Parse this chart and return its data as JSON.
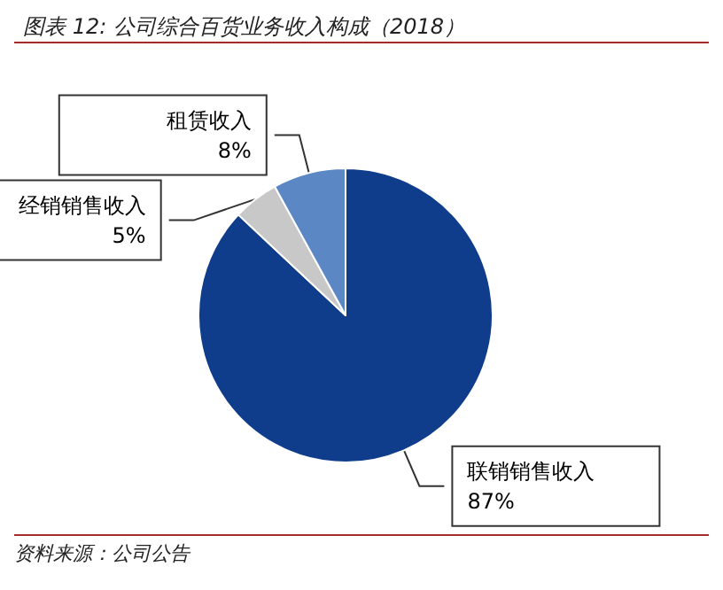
{
  "chart_data": {
    "type": "pie",
    "title": "图表 12: 公司综合百货业务收入构成（2018）",
    "categories": [
      "联销销售收入",
      "经销销售收入",
      "租赁收入"
    ],
    "values": [
      87,
      5,
      8
    ],
    "colors": [
      "#0f3d8c",
      "#c8c8c8",
      "#5b87c5"
    ],
    "value_labels": [
      "87%",
      "5%",
      "8%"
    ],
    "legend": false,
    "annotations": [
      "资料来源：公司公告"
    ]
  }
}
